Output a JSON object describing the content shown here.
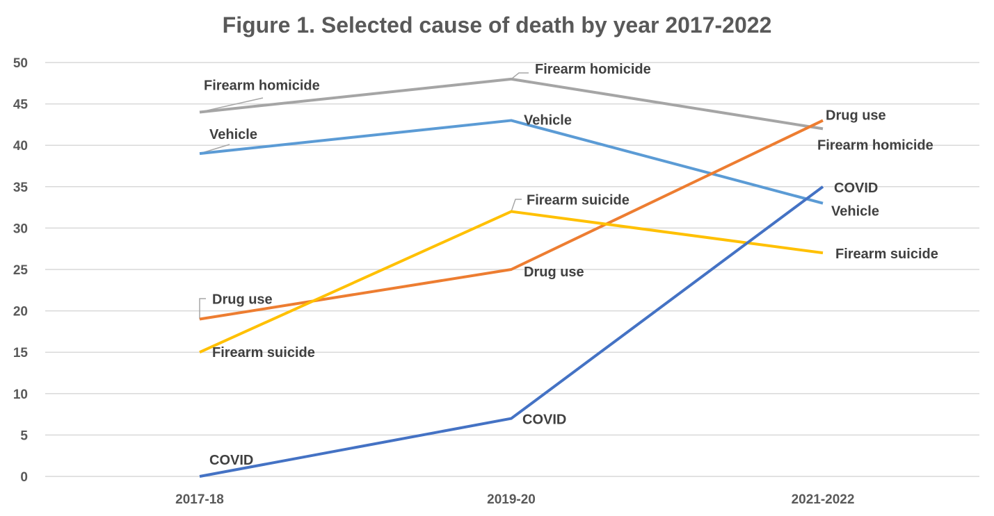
{
  "chart_data": {
    "type": "line",
    "title": "Figure 1. Selected cause of death by year 2017-2022",
    "xlabel": "",
    "ylabel": "",
    "categories": [
      "2017-18",
      "2019-20",
      "2021-2022"
    ],
    "ylim": [
      0,
      50
    ],
    "yticks": [
      0,
      5,
      10,
      15,
      20,
      25,
      30,
      35,
      40,
      45,
      50
    ],
    "grid": true,
    "legend": "none",
    "series": [
      {
        "name": "Firearm homicide",
        "values": [
          44,
          48,
          42
        ],
        "color": "#a5a5a5"
      },
      {
        "name": "Vehicle",
        "values": [
          39,
          43,
          33
        ],
        "color": "#5b9bd5"
      },
      {
        "name": "Drug use",
        "values": [
          19,
          25,
          43
        ],
        "color": "#ed7d31"
      },
      {
        "name": "Firearm suicide",
        "values": [
          15,
          32,
          27
        ],
        "color": "#ffc000"
      },
      {
        "name": "COVID",
        "values": [
          0,
          7,
          35
        ],
        "color": "#4472c4"
      }
    ]
  }
}
